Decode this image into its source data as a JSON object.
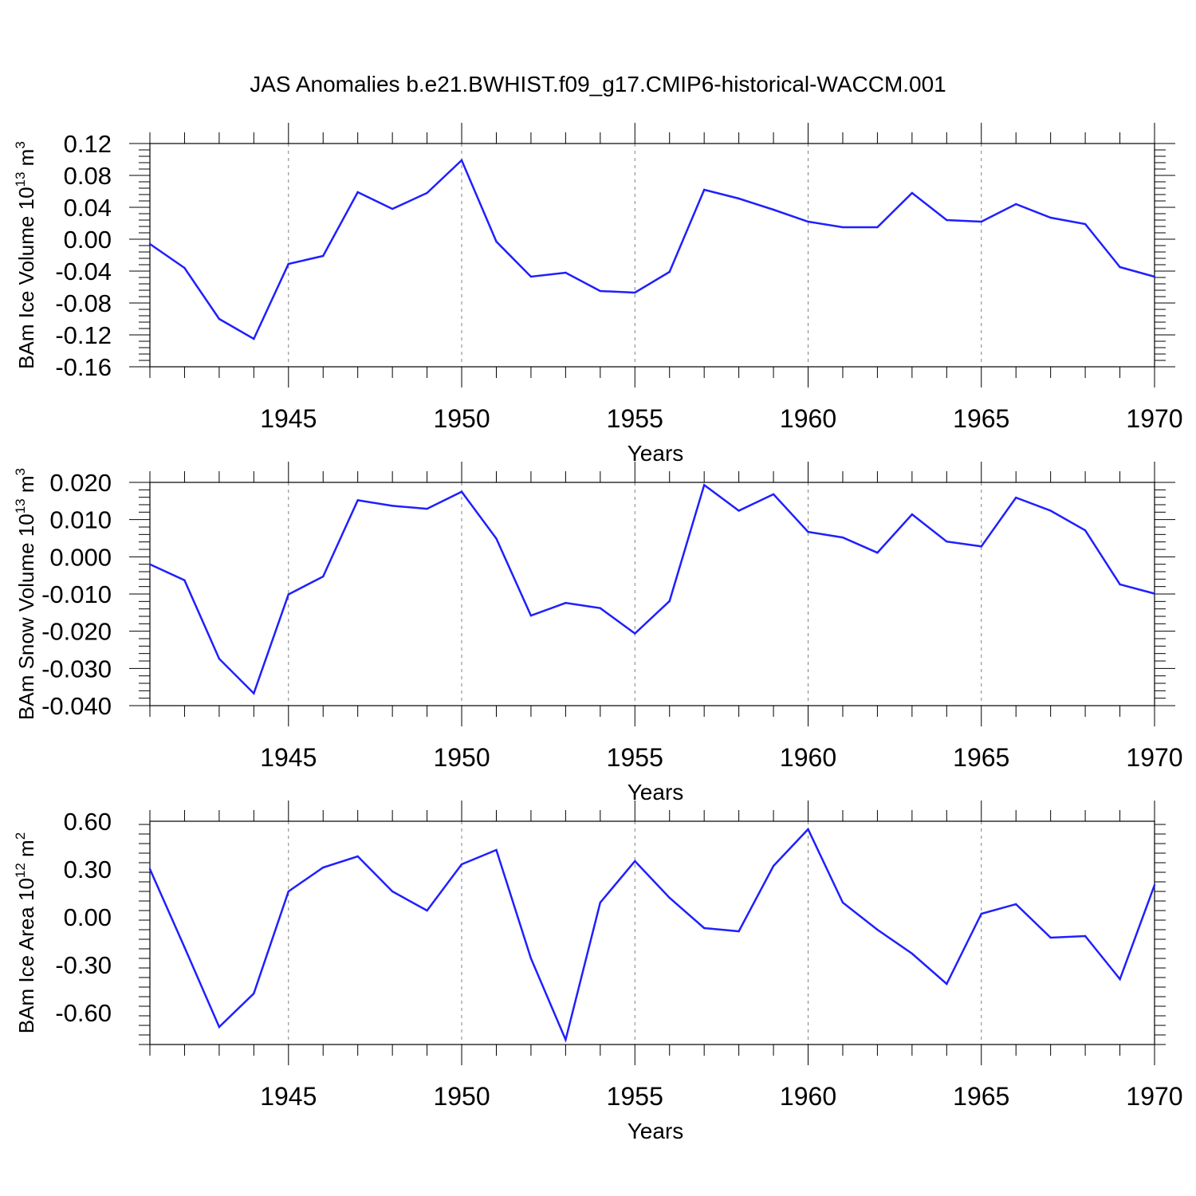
{
  "figure_title": "JAS Anomalies b.e21.BWHIST.f09_g17.CMIP6-historical-WACCM.001",
  "colors": {
    "line": "#1f1fff",
    "axes": "#000000",
    "gridline": "#808080"
  },
  "chart_data": [
    {
      "type": "line",
      "ylabel": {
        "main": "BAm Ice Volume 10",
        "exp": "13",
        "unit": " m",
        "unit_exp": "3"
      },
      "xlabel": "Years",
      "xlim": [
        1941,
        1970
      ],
      "ylim": [
        -0.16,
        0.12
      ],
      "yticks": [
        0.12,
        0.08,
        0.04,
        0.0,
        -0.04,
        -0.08,
        -0.12,
        -0.16
      ],
      "ytick_labels": [
        "0.12",
        "0.08",
        "0.04",
        "0.00",
        "-0.04",
        "-0.08",
        "-0.12",
        "-0.16"
      ],
      "xticks": [
        1945,
        1950,
        1955,
        1960,
        1965,
        1970
      ],
      "xtick_labels": [
        "1945",
        "1950",
        "1955",
        "1960",
        "1965",
        "1970"
      ],
      "x": [
        1941,
        1942,
        1943,
        1944,
        1945,
        1946,
        1947,
        1948,
        1949,
        1950,
        1951,
        1952,
        1953,
        1954,
        1955,
        1956,
        1957,
        1958,
        1959,
        1960,
        1961,
        1962,
        1963,
        1964,
        1965,
        1966,
        1967,
        1968,
        1969,
        1970
      ],
      "values": [
        -0.006,
        -0.036,
        -0.1,
        -0.125,
        -0.031,
        -0.021,
        0.059,
        0.038,
        0.058,
        0.099,
        -0.003,
        -0.047,
        -0.042,
        -0.065,
        -0.067,
        -0.041,
        0.062,
        0.051,
        0.037,
        0.022,
        0.015,
        0.015,
        0.058,
        0.024,
        0.022,
        0.044,
        0.027,
        0.019,
        -0.035,
        -0.047
      ]
    },
    {
      "type": "line",
      "ylabel": {
        "main": "BAm Snow Volume 10",
        "exp": "13",
        "unit": " m",
        "unit_exp": "3"
      },
      "xlabel": "Years",
      "xlim": [
        1941,
        1970
      ],
      "ylim": [
        -0.04,
        0.02
      ],
      "yticks": [
        0.02,
        0.01,
        0.0,
        -0.01,
        -0.02,
        -0.03,
        -0.04
      ],
      "ytick_labels": [
        "0.020",
        "0.010",
        "0.000",
        "-0.010",
        "-0.020",
        "-0.030",
        "-0.040"
      ],
      "xticks": [
        1945,
        1950,
        1955,
        1960,
        1965,
        1970
      ],
      "xtick_labels": [
        "1945",
        "1950",
        "1955",
        "1960",
        "1965",
        "1970"
      ],
      "x": [
        1941,
        1942,
        1943,
        1944,
        1945,
        1946,
        1947,
        1948,
        1949,
        1950,
        1951,
        1952,
        1953,
        1954,
        1955,
        1956,
        1957,
        1958,
        1959,
        1960,
        1961,
        1962,
        1963,
        1964,
        1965,
        1966,
        1967,
        1968,
        1969,
        1970
      ],
      "values": [
        -0.002,
        -0.0063,
        -0.0274,
        -0.0367,
        -0.0101,
        -0.0053,
        0.0152,
        0.0137,
        0.0129,
        0.0175,
        0.0049,
        -0.0158,
        -0.0124,
        -0.0138,
        -0.0206,
        -0.0119,
        0.0193,
        0.0124,
        0.0168,
        0.0067,
        0.0052,
        0.0011,
        0.0114,
        0.0041,
        0.0028,
        0.0159,
        0.0124,
        0.0071,
        -0.0074,
        -0.0099
      ]
    },
    {
      "type": "line",
      "ylabel": {
        "main": "BAm Ice Area 10",
        "exp": "12",
        "unit": " m",
        "unit_exp": "2"
      },
      "xlabel": "Years",
      "xlim": [
        1941,
        1970
      ],
      "ylim": [
        -0.8,
        0.6
      ],
      "yticks": [
        0.6,
        0.3,
        0.0,
        -0.3,
        -0.6
      ],
      "ytick_labels": [
        "0.60",
        "0.30",
        "0.00",
        "-0.30",
        "-0.60"
      ],
      "xticks": [
        1945,
        1950,
        1955,
        1960,
        1965,
        1970
      ],
      "xtick_labels": [
        "1945",
        "1950",
        "1955",
        "1960",
        "1965",
        "1970"
      ],
      "x": [
        1941,
        1942,
        1943,
        1944,
        1945,
        1946,
        1947,
        1948,
        1949,
        1950,
        1951,
        1952,
        1953,
        1954,
        1955,
        1956,
        1957,
        1958,
        1959,
        1960,
        1961,
        1962,
        1963,
        1964,
        1965,
        1966,
        1967,
        1968,
        1969,
        1970
      ],
      "values": [
        0.3,
        -0.19,
        -0.69,
        -0.48,
        0.16,
        0.31,
        0.38,
        0.16,
        0.04,
        0.33,
        0.42,
        -0.26,
        -0.77,
        0.09,
        0.35,
        0.12,
        -0.07,
        -0.09,
        0.32,
        0.55,
        0.09,
        -0.08,
        -0.23,
        -0.42,
        0.02,
        0.08,
        -0.13,
        -0.12,
        -0.39,
        0.2
      ]
    }
  ]
}
